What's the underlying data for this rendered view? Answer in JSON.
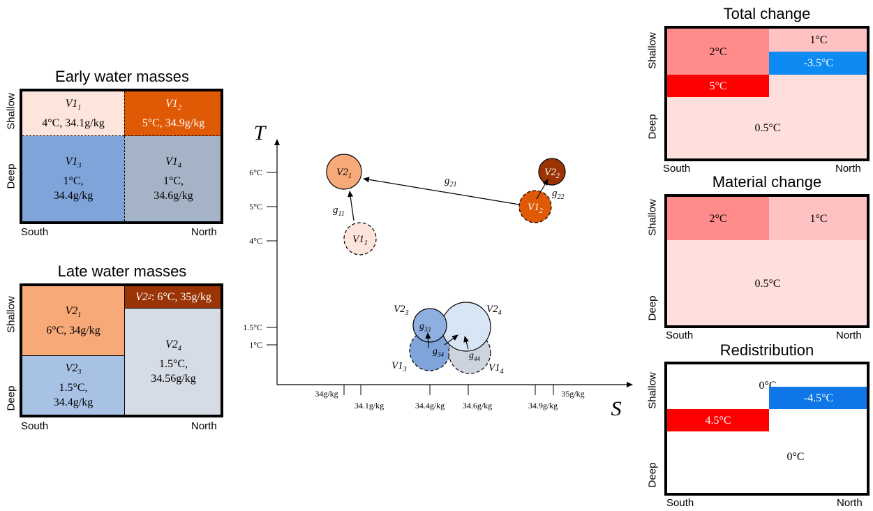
{
  "early": {
    "title": "Early water masses",
    "shallow": "Shallow",
    "deep": "Deep",
    "south": "South",
    "north": "North",
    "cells": {
      "v11": {
        "name": "V1",
        "sub": "1",
        "line1": "4°C, 34.1g/kg"
      },
      "v12": {
        "name": "V1",
        "sub": "2",
        "line1": "5°C, 34.9g/kg"
      },
      "v13": {
        "name": "V1",
        "sub": "3",
        "line1": "1°C,",
        "line2": "34.4g/kg"
      },
      "v14": {
        "name": "V1",
        "sub": "4",
        "line1": "1°C,",
        "line2": "34.6g/kg"
      }
    }
  },
  "late": {
    "title": "Late water masses",
    "shallow": "Shallow",
    "deep": "Deep",
    "south": "South",
    "north": "North",
    "cells": {
      "v21": {
        "name": "V2",
        "sub": "1",
        "line1": "6°C, 34g/kg"
      },
      "v22": {
        "name": "V2",
        "sub": "2",
        "line1": ": 6°C, 35g/kg"
      },
      "v23": {
        "name": "V2",
        "sub": "3",
        "line1": "1.5°C,",
        "line2": "34.4g/kg"
      },
      "v24": {
        "name": "V2",
        "sub": "4",
        "line1": "1.5°C,",
        "line2": "34.56g/kg"
      }
    }
  },
  "ts": {
    "t_axis": "T",
    "s_axis": "S",
    "t_ticks": [
      "6°C",
      "5°C",
      "4°C",
      "1.5°C",
      "1°C"
    ],
    "s_ticks": [
      "34g/kg",
      "34.1g/kg",
      "34.4g/kg",
      "34.6g/kg",
      "34.9g/kg",
      "35g/kg"
    ],
    "bubbles": {
      "v21": "V2",
      "v21_sub": "1",
      "v22": "V2",
      "v22_sub": "2",
      "v11": "V1",
      "v11_sub": "1",
      "v12": "V1",
      "v12_sub": "2",
      "v23": "V2",
      "v23_sub": "3",
      "v24": "V2",
      "v24_sub": "4",
      "v13": "V1",
      "v13_sub": "3",
      "v14": "V1",
      "v14_sub": "4"
    },
    "arrows": {
      "g11": "g",
      "g11_sub": "11",
      "g21": "g",
      "g21_sub": "21",
      "g22": "g",
      "g22_sub": "22",
      "g33": "g",
      "g33_sub": "33",
      "g34": "g",
      "g34_sub": "34",
      "g44": "g",
      "g44_sub": "44"
    },
    "colors": {
      "v11": "#fde5db",
      "v12": "#e05a06",
      "v21": "#f8a978",
      "v22": "#9a3405",
      "v13": "#7ea4d9",
      "v14": "#cdd4df",
      "v23": "#8eb0e0",
      "v24": "#d8e5f4"
    }
  },
  "total": {
    "title": "Total change",
    "shallow": "Shallow",
    "deep": "Deep",
    "south": "South",
    "north": "North",
    "a": "2°C",
    "b": "1°C",
    "c": "-3.5°C",
    "d": "5°C",
    "e": "0.5°C"
  },
  "material": {
    "title": "Material change",
    "shallow": "Shallow",
    "deep": "Deep",
    "south": "South",
    "north": "North",
    "a": "2°C",
    "b": "1°C",
    "e": "0.5°C"
  },
  "redist": {
    "title": "Redistribution",
    "shallow": "Shallow",
    "deep": "Deep",
    "south": "South",
    "north": "North",
    "a": "0°C",
    "c": "-4.5°C",
    "d": "4.5°C",
    "e": "0°C"
  }
}
